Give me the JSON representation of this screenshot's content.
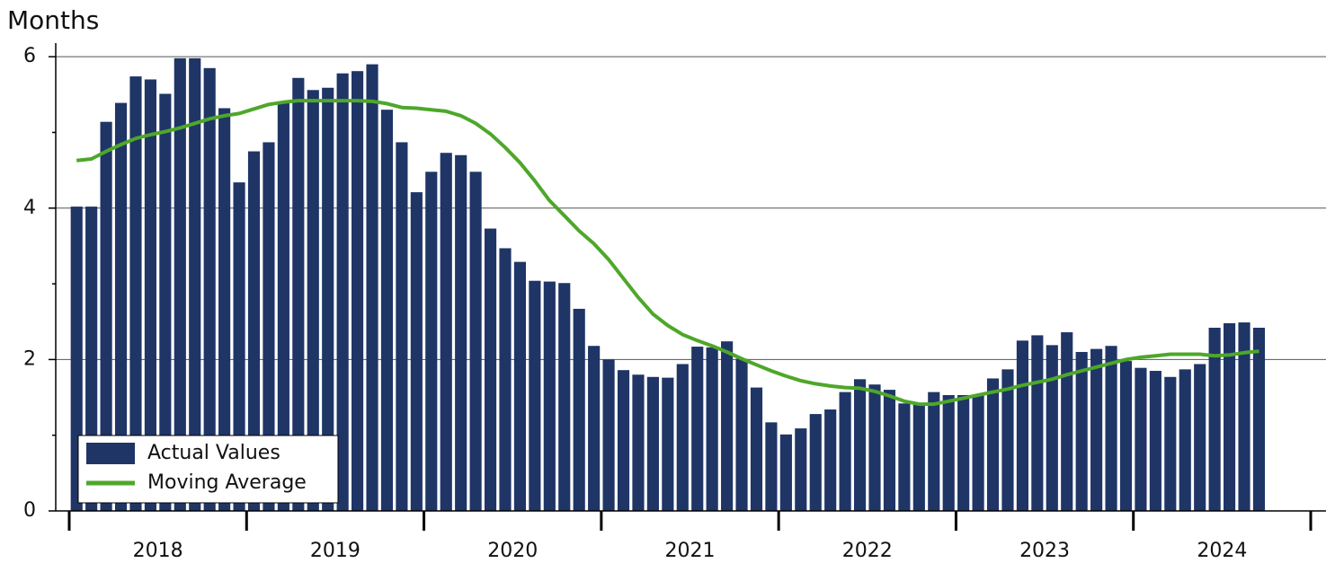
{
  "chart_data": {
    "type": "combo",
    "y_label": "Months",
    "categories": [
      "2018",
      null,
      null,
      null,
      null,
      null,
      null,
      null,
      null,
      null,
      null,
      null,
      "2019",
      null,
      null,
      null,
      null,
      null,
      null,
      null,
      null,
      null,
      null,
      null,
      "2020",
      null,
      null,
      null,
      null,
      null,
      null,
      null,
      null,
      null,
      null,
      null,
      "2021",
      null,
      null,
      null,
      null,
      null,
      null,
      null,
      null,
      null,
      null,
      null,
      "2022",
      null,
      null,
      null,
      null,
      null,
      null,
      null,
      null,
      null,
      null,
      null,
      "2023",
      null,
      null,
      null,
      null,
      null,
      null,
      null,
      null,
      null,
      null,
      null,
      "2024",
      null,
      null,
      null,
      null,
      null,
      null,
      null,
      null
    ],
    "series": [
      {
        "name": "Actual Values",
        "type": "bar",
        "color": "#1f3566",
        "values": [
          4.02,
          4.02,
          5.14,
          5.39,
          5.74,
          5.7,
          5.51,
          5.98,
          5.98,
          5.85,
          5.32,
          4.34,
          4.75,
          4.87,
          5.39,
          5.72,
          5.56,
          5.59,
          5.78,
          5.81,
          5.9,
          5.3,
          4.87,
          4.21,
          4.48,
          4.73,
          4.7,
          4.48,
          3.73,
          3.47,
          3.29,
          3.04,
          3.03,
          3.01,
          2.67,
          2.18,
          2.0,
          1.86,
          1.8,
          1.77,
          1.76,
          1.94,
          2.17,
          2.16,
          2.24,
          2.01,
          1.63,
          1.17,
          1.01,
          1.09,
          1.28,
          1.34,
          1.57,
          1.74,
          1.67,
          1.6,
          1.42,
          1.42,
          1.57,
          1.53,
          1.53,
          1.53,
          1.75,
          1.87,
          2.25,
          2.32,
          2.19,
          2.36,
          2.1,
          2.14,
          2.18,
          1.98,
          1.89,
          1.85,
          1.77,
          1.87,
          1.94,
          2.42,
          2.48,
          2.49,
          2.42
        ]
      },
      {
        "name": "Moving Average",
        "type": "line",
        "color": "#4ea72a",
        "values": [
          4.63,
          4.65,
          4.75,
          4.84,
          4.92,
          4.97,
          5.01,
          5.06,
          5.12,
          5.18,
          5.22,
          5.25,
          5.31,
          5.37,
          5.4,
          5.42,
          5.42,
          5.42,
          5.42,
          5.42,
          5.41,
          5.38,
          5.33,
          5.32,
          5.3,
          5.28,
          5.22,
          5.12,
          4.98,
          4.8,
          4.6,
          4.36,
          4.1,
          3.9,
          3.7,
          3.53,
          3.32,
          3.07,
          2.82,
          2.6,
          2.45,
          2.33,
          2.25,
          2.18,
          2.1,
          2.01,
          1.93,
          1.85,
          1.78,
          1.72,
          1.68,
          1.65,
          1.63,
          1.62,
          1.58,
          1.52,
          1.45,
          1.41,
          1.41,
          1.45,
          1.49,
          1.53,
          1.57,
          1.61,
          1.66,
          1.7,
          1.74,
          1.8,
          1.85,
          1.9,
          1.95,
          2.0,
          2.03,
          2.05,
          2.07,
          2.07,
          2.07,
          2.05,
          2.06,
          2.09,
          2.11
        ]
      }
    ],
    "ylim": [
      0,
      6.18
    ],
    "yticks": [
      0,
      2,
      4,
      6
    ],
    "yminorticks": [
      1,
      3,
      5
    ],
    "grid": true,
    "legend": "lower left"
  }
}
